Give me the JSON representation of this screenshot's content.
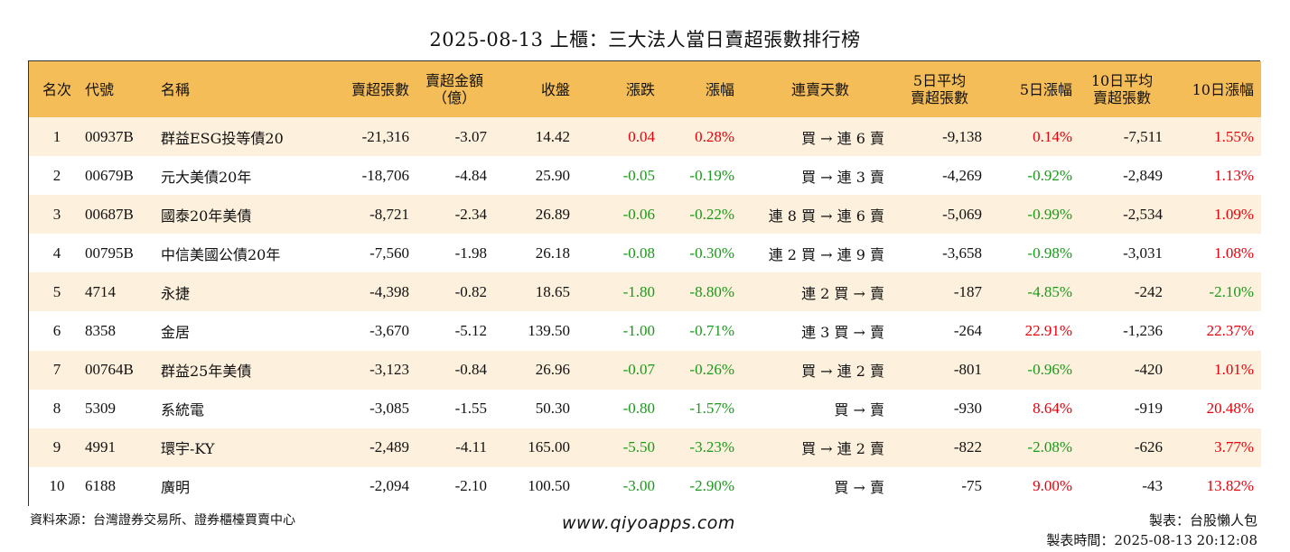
{
  "title": "2025-08-13 上櫃：三大法人當日賣超張數排行榜",
  "headers": {
    "rank": "名次",
    "code": "代號",
    "name": "名稱",
    "sell_lots": "賣超張數",
    "sell_amt_1": "賣超金額",
    "sell_amt_2": "（億）",
    "close": "收盤",
    "change": "漲跌",
    "pct": "漲幅",
    "days": "連賣天數",
    "avg5_1": "5日平均",
    "avg5_2": "賣超張數",
    "pct5": "5日漲幅",
    "avg10_1": "10日平均",
    "avg10_2": "賣超張數",
    "pct10": "10日漲幅"
  },
  "rows": [
    {
      "rank": "1",
      "code": "00937B",
      "name": "群益ESG投等債20",
      "sell_lots": "-21,316",
      "sell_amt": "-3.07",
      "close": "14.42",
      "change": "0.04",
      "pct": "0.28%",
      "days": "買 → 連 6 賣",
      "avg5": "-9,138",
      "pct5": "0.14%",
      "avg10": "-7,511",
      "pct10": "1.55%"
    },
    {
      "rank": "2",
      "code": "00679B",
      "name": "元大美債20年",
      "sell_lots": "-18,706",
      "sell_amt": "-4.84",
      "close": "25.90",
      "change": "-0.05",
      "pct": "-0.19%",
      "days": "買 → 連 3 賣",
      "avg5": "-4,269",
      "pct5": "-0.92%",
      "avg10": "-2,849",
      "pct10": "1.13%"
    },
    {
      "rank": "3",
      "code": "00687B",
      "name": "國泰20年美債",
      "sell_lots": "-8,721",
      "sell_amt": "-2.34",
      "close": "26.89",
      "change": "-0.06",
      "pct": "-0.22%",
      "days": "連 8 買 → 連 6 賣",
      "avg5": "-5,069",
      "pct5": "-0.99%",
      "avg10": "-2,534",
      "pct10": "1.09%"
    },
    {
      "rank": "4",
      "code": "00795B",
      "name": "中信美國公債20年",
      "sell_lots": "-7,560",
      "sell_amt": "-1.98",
      "close": "26.18",
      "change": "-0.08",
      "pct": "-0.30%",
      "days": "連 2 買 → 連 9 賣",
      "avg5": "-3,658",
      "pct5": "-0.98%",
      "avg10": "-3,031",
      "pct10": "1.08%"
    },
    {
      "rank": "5",
      "code": "4714",
      "name": "永捷",
      "sell_lots": "-4,398",
      "sell_amt": "-0.82",
      "close": "18.65",
      "change": "-1.80",
      "pct": "-8.80%",
      "days": "連 2 買 → 賣",
      "avg5": "-187",
      "pct5": "-4.85%",
      "avg10": "-242",
      "pct10": "-2.10%"
    },
    {
      "rank": "6",
      "code": "8358",
      "name": "金居",
      "sell_lots": "-3,670",
      "sell_amt": "-5.12",
      "close": "139.50",
      "change": "-1.00",
      "pct": "-0.71%",
      "days": "連 3 買 → 賣",
      "avg5": "-264",
      "pct5": "22.91%",
      "avg10": "-1,236",
      "pct10": "22.37%"
    },
    {
      "rank": "7",
      "code": "00764B",
      "name": "群益25年美債",
      "sell_lots": "-3,123",
      "sell_amt": "-0.84",
      "close": "26.96",
      "change": "-0.07",
      "pct": "-0.26%",
      "days": "買 → 連 2 賣",
      "avg5": "-801",
      "pct5": "-0.96%",
      "avg10": "-420",
      "pct10": "1.01%"
    },
    {
      "rank": "8",
      "code": "5309",
      "name": "系統電",
      "sell_lots": "-3,085",
      "sell_amt": "-1.55",
      "close": "50.30",
      "change": "-0.80",
      "pct": "-1.57%",
      "days": "買 → 賣",
      "avg5": "-930",
      "pct5": "8.64%",
      "avg10": "-919",
      "pct10": "20.48%"
    },
    {
      "rank": "9",
      "code": "4991",
      "name": "環宇-KY",
      "sell_lots": "-2,489",
      "sell_amt": "-4.11",
      "close": "165.00",
      "change": "-5.50",
      "pct": "-3.23%",
      "days": "買 → 連 2 賣",
      "avg5": "-822",
      "pct5": "-2.08%",
      "avg10": "-626",
      "pct10": "3.77%"
    },
    {
      "rank": "10",
      "code": "6188",
      "name": "廣明",
      "sell_lots": "-2,094",
      "sell_amt": "-2.10",
      "close": "100.50",
      "change": "-3.00",
      "pct": "-2.90%",
      "days": "買 → 賣",
      "avg5": "-75",
      "pct5": "9.00%",
      "avg10": "-43",
      "pct10": "13.82%"
    }
  ],
  "footer": {
    "source": "資料來源：台灣證券交易所、證券櫃檯買賣中心",
    "website": "www.qiyoapps.com",
    "maker": "製表：台股懶人包",
    "made_time": "製表時間：2025-08-13 20:12:08"
  },
  "colors": {
    "header_bg": "#f4bd58",
    "stripe": "#fdf0dc",
    "up": "#e8000b",
    "down": "#1a9a1a"
  }
}
